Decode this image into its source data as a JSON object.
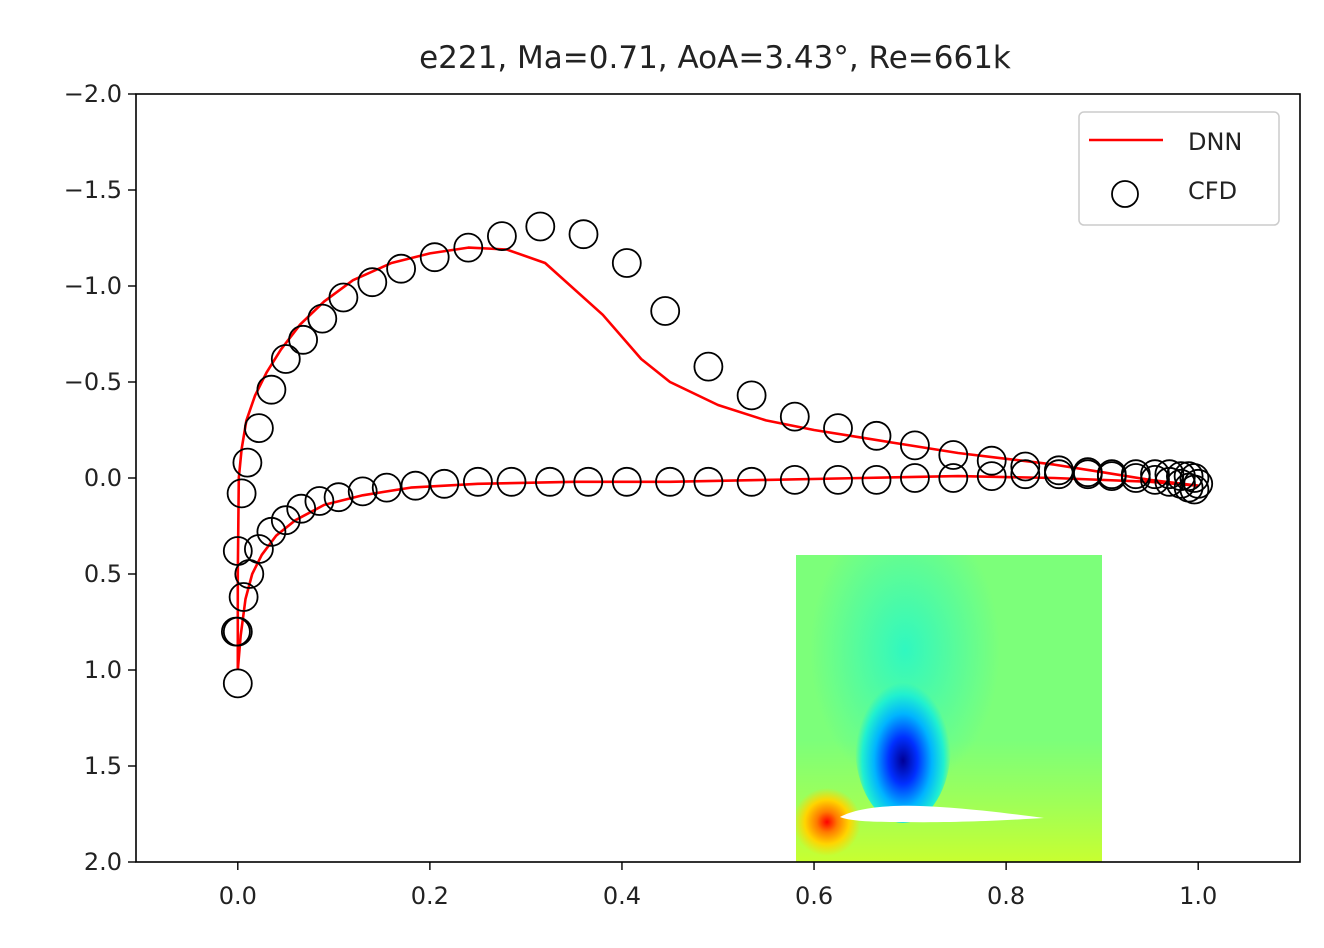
{
  "chart_data": {
    "type": "line",
    "title": "e221, Ma=0.71, AoA=3.43°, Re=661k",
    "xlabel": "",
    "ylabel": "",
    "xlim": [
      -0.106,
      1.106
    ],
    "ylim": [
      -2.0,
      2.0
    ],
    "y_inverted": true,
    "grid": false,
    "legend_placement": "top-right",
    "x_ticks": [
      "0.0",
      "0.2",
      "0.4",
      "0.6",
      "0.8",
      "1.0"
    ],
    "y_ticks": [
      "−2.0",
      "−1.5",
      "−1.0",
      "−0.5",
      "0.0",
      "0.5",
      "1.0",
      "1.5",
      "2.0"
    ],
    "colors": {
      "dnn": "#ff0000",
      "cfd": "#000000",
      "axes": "#000000"
    },
    "inset": {
      "type": "heatmap",
      "colormap": "jet",
      "position": "bottom-right"
    },
    "series": [
      {
        "name": "DNN",
        "style": "line",
        "x": [
          1.0,
          0.95,
          0.9,
          0.85,
          0.8,
          0.75,
          0.7,
          0.65,
          0.6,
          0.55,
          0.5,
          0.45,
          0.42,
          0.38,
          0.32,
          0.28,
          0.24,
          0.2,
          0.16,
          0.12,
          0.09,
          0.065,
          0.045,
          0.03,
          0.018,
          0.009,
          0.004,
          0.001,
          0.0,
          0.0
        ],
        "y": [
          0.04,
          0.01,
          -0.03,
          -0.07,
          -0.1,
          -0.13,
          -0.17,
          -0.21,
          -0.25,
          -0.3,
          -0.38,
          -0.5,
          -0.62,
          -0.85,
          -1.12,
          -1.19,
          -1.2,
          -1.17,
          -1.12,
          -1.03,
          -0.92,
          -0.8,
          -0.67,
          -0.55,
          -0.43,
          -0.3,
          -0.15,
          0.0,
          0.5,
          1.0
        ]
      },
      {
        "name": "DNN",
        "style": "line",
        "x": [
          0.0,
          0.003,
          0.008,
          0.015,
          0.025,
          0.04,
          0.06,
          0.09,
          0.13,
          0.18,
          0.25,
          0.35,
          0.45,
          0.55,
          0.65,
          0.75,
          0.85,
          0.95,
          1.0
        ],
        "y": [
          1.0,
          0.82,
          0.63,
          0.5,
          0.4,
          0.3,
          0.22,
          0.14,
          0.09,
          0.05,
          0.03,
          0.02,
          0.02,
          0.01,
          0.0,
          -0.01,
          0.0,
          0.02,
          0.04
        ]
      },
      {
        "name": "CFD",
        "style": "markers",
        "x": [
          0.0,
          -0.002,
          0.0,
          0.004,
          0.01,
          0.022,
          0.035,
          0.05,
          0.068,
          0.088,
          0.11,
          0.14,
          0.17,
          0.205,
          0.24,
          0.275,
          0.315,
          0.36,
          0.405,
          0.445,
          0.49,
          0.535,
          0.58,
          0.625,
          0.665,
          0.705,
          0.745,
          0.785,
          0.82,
          0.855,
          0.885,
          0.91,
          0.935,
          0.955,
          0.97,
          0.982,
          0.99,
          0.996,
          1.0
        ],
        "y": [
          1.07,
          0.8,
          0.38,
          0.08,
          -0.08,
          -0.26,
          -0.46,
          -0.62,
          -0.72,
          -0.83,
          -0.94,
          -1.02,
          -1.09,
          -1.15,
          -1.2,
          -1.26,
          -1.31,
          -1.27,
          -1.12,
          -0.87,
          -0.58,
          -0.43,
          -0.32,
          -0.26,
          -0.22,
          -0.17,
          -0.12,
          -0.09,
          -0.06,
          -0.04,
          -0.03,
          -0.02,
          -0.02,
          -0.02,
          -0.02,
          -0.01,
          -0.01,
          0.0,
          0.03
        ]
      },
      {
        "name": "CFD",
        "style": "markers",
        "x": [
          0.0,
          0.006,
          0.012,
          0.022,
          0.035,
          0.05,
          0.066,
          0.085,
          0.105,
          0.13,
          0.155,
          0.185,
          0.215,
          0.25,
          0.285,
          0.325,
          0.365,
          0.405,
          0.45,
          0.49,
          0.535,
          0.58,
          0.625,
          0.665,
          0.705,
          0.745,
          0.785,
          0.82,
          0.855,
          0.885,
          0.91,
          0.935,
          0.955,
          0.97,
          0.982,
          0.99,
          0.996
        ],
        "y": [
          0.8,
          0.62,
          0.5,
          0.37,
          0.28,
          0.22,
          0.16,
          0.12,
          0.1,
          0.07,
          0.05,
          0.04,
          0.03,
          0.02,
          0.02,
          0.02,
          0.02,
          0.02,
          0.02,
          0.02,
          0.02,
          0.01,
          0.01,
          0.01,
          0.0,
          0.0,
          -0.01,
          -0.02,
          -0.02,
          -0.02,
          -0.01,
          0.0,
          0.01,
          0.02,
          0.03,
          0.05,
          0.06
        ]
      }
    ]
  }
}
